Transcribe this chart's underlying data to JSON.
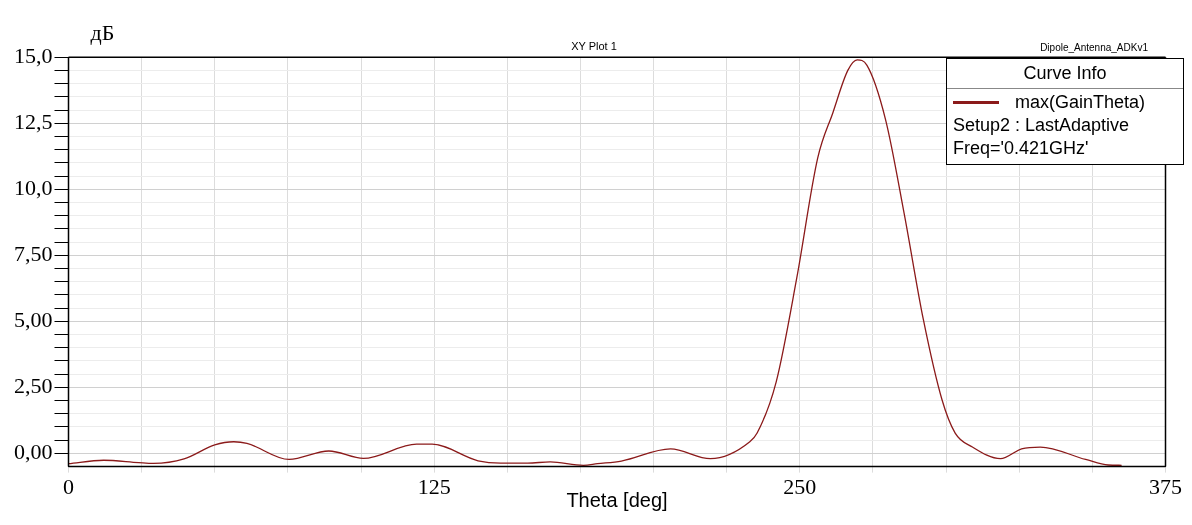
{
  "chart_data": {
    "type": "line",
    "title": "XY Plot 1",
    "xlabel": "Theta [deg]",
    "ylabel": "дБ",
    "legend_title": "Curve Info",
    "legend": "top right",
    "grid": true,
    "marker": "none",
    "line_style": "solid",
    "annotations": [
      "Dipole_Antenna_ADKv1",
      "Setup2 : LastAdaptive",
      "Freq='0.421GHz'"
    ],
    "xlim": [
      0,
      375
    ],
    "xticks": [
      0,
      {
        "value": 25,
        "label": null
      },
      {
        "value": 50,
        "label": null
      },
      {
        "value": 75,
        "label": null
      },
      {
        "value": 100,
        "label": null
      },
      125,
      {
        "value": 150,
        "label": null
      },
      {
        "value": 175,
        "label": null
      },
      {
        "value": 200,
        "label": null
      },
      {
        "value": 225,
        "label": null
      },
      250,
      {
        "value": 275,
        "label": null
      },
      {
        "value": 300,
        "label": null
      },
      {
        "value": 325,
        "label": null
      },
      {
        "value": 350,
        "label": null
      },
      375
    ],
    "ylim": [
      -0.5,
      15
    ],
    "yticks": [
      {
        "value": 0,
        "label": "0,00"
      },
      {
        "value": 0.5,
        "label": null
      },
      {
        "value": 1,
        "label": null
      },
      {
        "value": 1.5,
        "label": null
      },
      {
        "value": 2,
        "label": null
      },
      {
        "value": 2.5,
        "label": "2,50"
      },
      {
        "value": 3,
        "label": null
      },
      {
        "value": 3.5,
        "label": null
      },
      {
        "value": 4,
        "label": null
      },
      {
        "value": 4.5,
        "label": null
      },
      {
        "value": 5,
        "label": "5,00"
      },
      {
        "value": 5.5,
        "label": null
      },
      {
        "value": 6,
        "label": null
      },
      {
        "value": 6.5,
        "label": null
      },
      {
        "value": 7,
        "label": null
      },
      {
        "value": 7.5,
        "label": "7,50"
      },
      {
        "value": 8,
        "label": null
      },
      {
        "value": 8.5,
        "label": null
      },
      {
        "value": 9,
        "label": null
      },
      {
        "value": 9.5,
        "label": null
      },
      {
        "value": 10,
        "label": "10,0"
      },
      {
        "value": 10.5,
        "label": null
      },
      {
        "value": 11,
        "label": null
      },
      {
        "value": 11.5,
        "label": null
      },
      {
        "value": 12,
        "label": null
      },
      {
        "value": 12.5,
        "label": "12,5"
      },
      {
        "value": 13,
        "label": null
      },
      {
        "value": 13.5,
        "label": null
      },
      {
        "value": 14,
        "label": null
      },
      {
        "value": 14.5,
        "label": null
      },
      {
        "value": 15,
        "label": "15,0"
      }
    ],
    "series": [
      {
        "name": "max(GainTheta)",
        "color": "#8b1a1a",
        "x": [
          0,
          12,
          24,
          29,
          39.5,
          50,
          56.5,
          61,
          75.4,
          89,
          100.8,
          119,
          124.3,
          140,
          147.7,
          157,
          164.7,
          176,
          180.8,
          189,
          205.8,
          219.4,
          232.9,
          235.4,
          241.9,
          249,
          256.1,
          261.3,
          266.4,
          269.6,
          272.9,
          279.3,
          285.7,
          292.2,
          298.6,
          303.1,
          309,
          318.6,
          325.8,
          332.2,
          347.7,
          355.4,
          360
        ],
        "values": [
          -0.39,
          -0.26,
          -0.35,
          -0.38,
          -0.21,
          0.32,
          0.44,
          0.38,
          -0.23,
          0.09,
          -0.19,
          0.35,
          0.35,
          -0.28,
          -0.37,
          -0.37,
          -0.32,
          -0.45,
          -0.39,
          -0.29,
          0.17,
          -0.2,
          0.44,
          0.77,
          2.7,
          6.67,
          11.18,
          12.9,
          14.5,
          14.9,
          14.7,
          12.64,
          9.06,
          5.08,
          2.03,
          0.77,
          0.24,
          -0.2,
          0.17,
          0.24,
          -0.23,
          -0.44,
          -0.45
        ]
      }
    ]
  }
}
